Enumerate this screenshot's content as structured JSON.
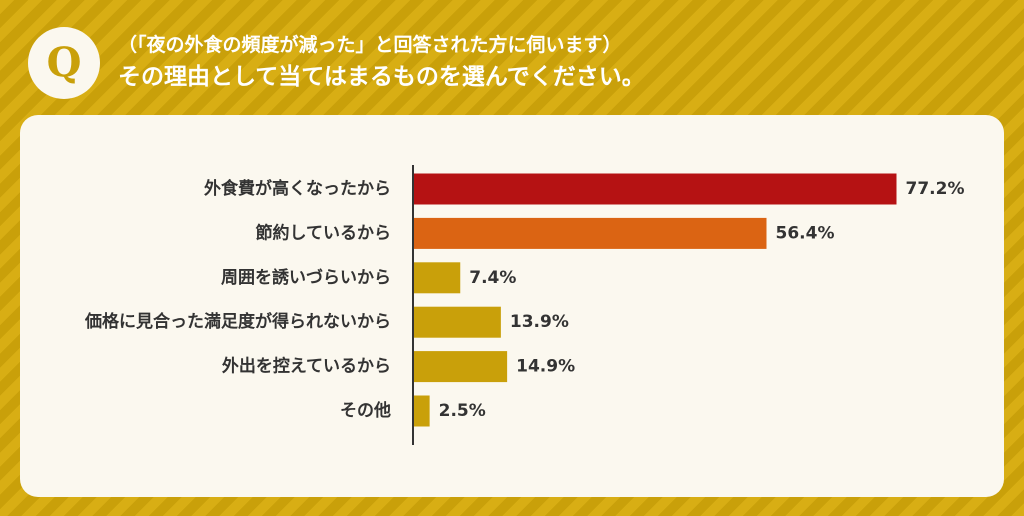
{
  "header": {
    "badge": "Q",
    "question_line1": "（「夜の外食の頻度が減った」と回答された方に伺います）",
    "question_line2": "その理由として当てはまるものを選んでください。"
  },
  "chart_data": {
    "type": "bar",
    "orientation": "horizontal",
    "categories": [
      "外食費が高くなったから",
      "節約しているから",
      "周囲を誘いづらいから",
      "価格に見合った満足度が得られないから",
      "外出を控えているから",
      "その他"
    ],
    "values": [
      77.2,
      56.4,
      7.4,
      13.9,
      14.9,
      2.5
    ],
    "value_labels": [
      "77.2%",
      "56.4%",
      "7.4%",
      "13.9%",
      "14.9%",
      "2.5%"
    ],
    "unit": "%",
    "bar_colors": [
      "#b51213",
      "#db6413",
      "#c9a00a",
      "#c9a00a",
      "#c9a00a",
      "#c9a00a"
    ],
    "xlim": [
      0,
      100
    ],
    "grid": false,
    "legend": "none"
  },
  "colors": {
    "background": "#d4a90c",
    "card": "#fbf8ef",
    "axis": "#333333"
  }
}
